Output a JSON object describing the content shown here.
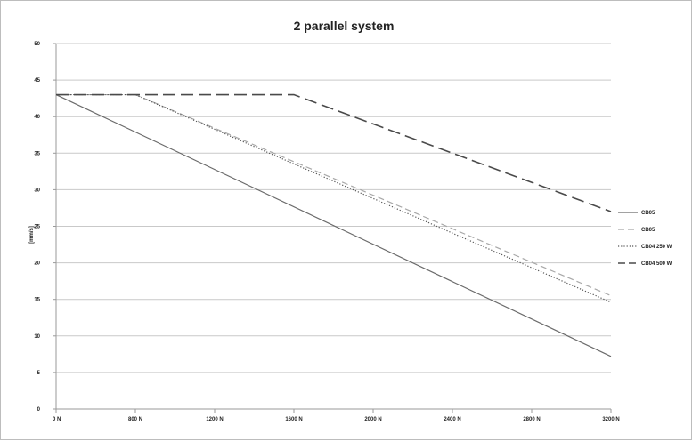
{
  "chart_data": {
    "type": "line",
    "title": "2 parallel system",
    "xlabel": "",
    "ylabel": "[mm/s]",
    "x_tick_labels": [
      "0 N",
      "800 N",
      "1200 N",
      "1600 N",
      "2000 N",
      "2400 N",
      "2800 N",
      "3200 N"
    ],
    "y_ticks": [
      0,
      5,
      10,
      15,
      20,
      25,
      30,
      35,
      40,
      45,
      50
    ],
    "ylim": [
      0,
      50
    ],
    "grid": "horizontal",
    "legend_position": "right",
    "colors": {
      "axis": "#9a9a9a",
      "grid": "#c9c9c9"
    },
    "series": [
      {
        "name": "CB05",
        "line_style": "solid",
        "color": "#6b6b6b",
        "points": [
          {
            "x": 0,
            "y": 43
          },
          {
            "x": 7,
            "y": 7.2
          }
        ]
      },
      {
        "name": "CB05",
        "line_style": "dashed",
        "color": "#a8a8a8",
        "points": [
          {
            "x": 0,
            "y": 43
          },
          {
            "x": 1,
            "y": 43
          },
          {
            "x": 7,
            "y": 15.5
          }
        ]
      },
      {
        "name": "CB04 250 W",
        "line_style": "dotted",
        "color": "#555555",
        "points": [
          {
            "x": 0,
            "y": 43
          },
          {
            "x": 1,
            "y": 43
          },
          {
            "x": 7,
            "y": 14.6
          }
        ]
      },
      {
        "name": "CB04 500 W",
        "line_style": "long-dash",
        "color": "#4a4a4a",
        "points": [
          {
            "x": 0,
            "y": 43
          },
          {
            "x": 3,
            "y": 43
          },
          {
            "x": 7,
            "y": 27
          }
        ]
      }
    ]
  }
}
